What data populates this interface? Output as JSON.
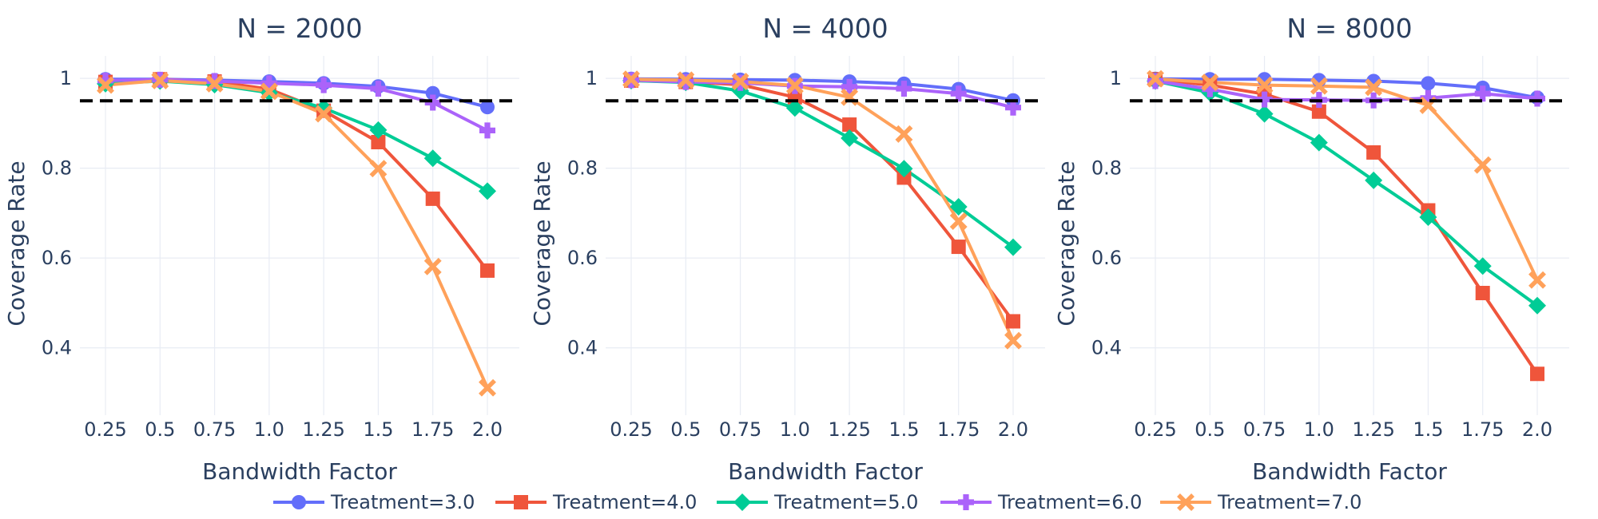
{
  "figure": {
    "legend_position": "bottom-center",
    "grid": true,
    "reference_line": {
      "y": 0.95,
      "style": "dashed",
      "color": "#000000"
    }
  },
  "chart_data": [
    {
      "type": "line",
      "title": "N = 2000",
      "xlabel": "Bandwidth Factor",
      "ylabel": "Coverage Rate",
      "categories": [
        "0.25",
        "0.5",
        "0.75",
        "1.0",
        "1.25",
        "1.5",
        "1.75",
        "2.0"
      ],
      "ylim": [
        0.25,
        1.05
      ],
      "yticks": [
        0.4,
        0.6,
        0.8,
        1
      ],
      "ytick_labels": [
        "0.4",
        "0.6",
        "0.8",
        "1"
      ],
      "series": [
        {
          "name": "Treatment=3.0",
          "color": "#636efa",
          "marker": "circle",
          "values": [
            0.998,
            0.998,
            0.996,
            0.993,
            0.989,
            0.982,
            0.967,
            0.936
          ]
        },
        {
          "name": "Treatment=4.0",
          "color": "#ef553b",
          "marker": "square",
          "values": [
            0.992,
            0.998,
            0.993,
            0.976,
            0.928,
            0.858,
            0.732,
            0.572
          ]
        },
        {
          "name": "Treatment=5.0",
          "color": "#00cc96",
          "marker": "diamond",
          "values": [
            0.988,
            0.994,
            0.986,
            0.968,
            0.934,
            0.885,
            0.822,
            0.749
          ]
        },
        {
          "name": "Treatment=6.0",
          "color": "#ab63fa",
          "marker": "cross",
          "values": [
            0.995,
            0.997,
            0.994,
            0.989,
            0.985,
            0.977,
            0.946,
            0.884
          ]
        },
        {
          "name": "Treatment=7.0",
          "color": "#ffa15a",
          "marker": "x",
          "values": [
            0.985,
            0.995,
            0.988,
            0.971,
            0.921,
            0.799,
            0.581,
            0.311
          ]
        }
      ]
    },
    {
      "type": "line",
      "title": "N = 4000",
      "xlabel": "Bandwidth Factor",
      "ylabel": "Coverage Rate",
      "categories": [
        "0.25",
        "0.5",
        "0.75",
        "1.0",
        "1.25",
        "1.5",
        "1.75",
        "2.0"
      ],
      "ylim": [
        0.25,
        1.05
      ],
      "yticks": [
        0.4,
        0.6,
        0.8,
        1
      ],
      "ytick_labels": [
        "0.4",
        "0.6",
        "0.8",
        "1"
      ],
      "series": [
        {
          "name": "Treatment=3.0",
          "color": "#636efa",
          "marker": "circle",
          "values": [
            0.999,
            0.998,
            0.997,
            0.996,
            0.993,
            0.988,
            0.976,
            0.951
          ]
        },
        {
          "name": "Treatment=4.0",
          "color": "#ef553b",
          "marker": "square",
          "values": [
            0.995,
            0.992,
            0.986,
            0.958,
            0.897,
            0.779,
            0.625,
            0.459
          ]
        },
        {
          "name": "Treatment=5.0",
          "color": "#00cc96",
          "marker": "diamond",
          "values": [
            0.995,
            0.991,
            0.972,
            0.934,
            0.867,
            0.799,
            0.714,
            0.624
          ]
        },
        {
          "name": "Treatment=6.0",
          "color": "#ab63fa",
          "marker": "cross",
          "values": [
            0.996,
            0.992,
            0.99,
            0.983,
            0.981,
            0.977,
            0.966,
            0.935
          ]
        },
        {
          "name": "Treatment=7.0",
          "color": "#ffa15a",
          "marker": "x",
          "values": [
            0.998,
            0.996,
            0.993,
            0.984,
            0.958,
            0.876,
            0.682,
            0.416
          ]
        }
      ]
    },
    {
      "type": "line",
      "title": "N = 8000",
      "xlabel": "Bandwidth Factor",
      "ylabel": "Coverage Rate",
      "categories": [
        "0.25",
        "0.5",
        "0.75",
        "1.0",
        "1.25",
        "1.5",
        "1.75",
        "2.0"
      ],
      "ylim": [
        0.25,
        1.05
      ],
      "yticks": [
        0.4,
        0.6,
        0.8,
        1
      ],
      "ytick_labels": [
        "0.4",
        "0.6",
        "0.8",
        "1"
      ],
      "series": [
        {
          "name": "Treatment=3.0",
          "color": "#636efa",
          "marker": "circle",
          "values": [
            0.999,
            0.998,
            0.998,
            0.996,
            0.994,
            0.989,
            0.979,
            0.957
          ]
        },
        {
          "name": "Treatment=4.0",
          "color": "#ef553b",
          "marker": "square",
          "values": [
            0.998,
            0.985,
            0.965,
            0.926,
            0.835,
            0.706,
            0.522,
            0.342
          ]
        },
        {
          "name": "Treatment=5.0",
          "color": "#00cc96",
          "marker": "diamond",
          "values": [
            0.994,
            0.968,
            0.921,
            0.857,
            0.773,
            0.691,
            0.582,
            0.494
          ]
        },
        {
          "name": "Treatment=6.0",
          "color": "#ab63fa",
          "marker": "cross",
          "values": [
            0.994,
            0.976,
            0.953,
            0.952,
            0.951,
            0.956,
            0.966,
            0.955
          ]
        },
        {
          "name": "Treatment=7.0",
          "color": "#ffa15a",
          "marker": "x",
          "values": [
            0.999,
            0.991,
            0.985,
            0.983,
            0.98,
            0.94,
            0.807,
            0.551
          ]
        }
      ]
    }
  ],
  "legend": {
    "items": [
      {
        "label": "Treatment=3.0",
        "color": "#636efa",
        "marker": "circle"
      },
      {
        "label": "Treatment=4.0",
        "color": "#ef553b",
        "marker": "square"
      },
      {
        "label": "Treatment=5.0",
        "color": "#00cc96",
        "marker": "diamond"
      },
      {
        "label": "Treatment=6.0",
        "color": "#ab63fa",
        "marker": "cross"
      },
      {
        "label": "Treatment=7.0",
        "color": "#ffa15a",
        "marker": "x"
      }
    ]
  }
}
